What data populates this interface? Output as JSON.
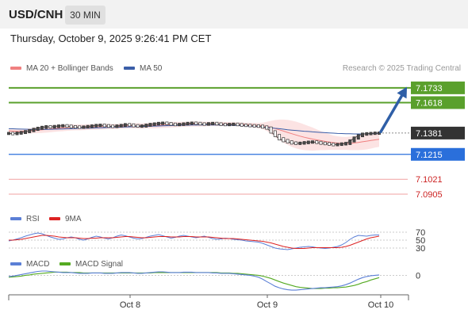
{
  "header": {
    "symbol": "USD/CNH",
    "timeframe": "30 MIN",
    "datetime": "Thursday, October 9, 2025 9:26:41 PM CET"
  },
  "legend": {
    "ma20_label": "MA 20 + Bollinger Bands",
    "ma50_label": "MA 50",
    "credit": "Research © 2025 Trading Central"
  },
  "colors": {
    "price": "#555555",
    "ma20": "#f08080",
    "ma50": "#3b5ea8",
    "green": "#5aa02c",
    "blue": "#2a6fdb",
    "red": "#e07070",
    "rsi": "#5b7fd6",
    "rsi_ma": "#dd2222",
    "macd": "#5b7fd6",
    "macd_signal": "#55aa22",
    "arrow": "#2f5fa7"
  },
  "chart_data": [
    {
      "type": "line",
      "name": "price",
      "x_ticks": [
        "Oct 8",
        "Oct 9",
        "Oct 10"
      ],
      "ylim": [
        7.08,
        7.18
      ],
      "last_price": 7.1381,
      "levels": [
        {
          "value": 7.1733,
          "label": "7.1733",
          "style": "green-tag"
        },
        {
          "value": 7.1618,
          "label": "7.1618",
          "style": "green-tag"
        },
        {
          "value": 7.1381,
          "label": "7.1381",
          "style": "price-tag"
        },
        {
          "value": 7.1215,
          "label": "7.1215",
          "style": "blue-tag"
        },
        {
          "value": 7.1021,
          "label": "7.1021",
          "style": "red-text"
        },
        {
          "value": 7.0905,
          "label": "7.0905",
          "style": "red-text"
        }
      ],
      "target_arrow": {
        "from": 7.139,
        "to": 7.1733
      },
      "close": [
        7.1378,
        7.1376,
        7.138,
        7.1385,
        7.1392,
        7.14,
        7.141,
        7.1418,
        7.1425,
        7.143,
        7.1428,
        7.1432,
        7.1436,
        7.1438,
        7.1434,
        7.143,
        7.1428,
        7.1426,
        7.1428,
        7.1432,
        7.1436,
        7.144,
        7.1442,
        7.1438,
        7.1434,
        7.1432,
        7.1436,
        7.144,
        7.1446,
        7.1444,
        7.1438,
        7.1434,
        7.1436,
        7.1442,
        7.1448,
        7.1452,
        7.1456,
        7.1458,
        7.1455,
        7.145,
        7.1446,
        7.1448,
        7.1452,
        7.1456,
        7.1458,
        7.1456,
        7.1452,
        7.145,
        7.1454,
        7.1456,
        7.1452,
        7.1448,
        7.1446,
        7.1448,
        7.145,
        7.1446,
        7.1442,
        7.144,
        7.1438,
        7.1436,
        7.1434,
        7.1428,
        7.142,
        7.139,
        7.1362,
        7.1336,
        7.1322,
        7.1312,
        7.1304,
        7.13,
        7.1302,
        7.1306,
        7.131,
        7.1312,
        7.1308,
        7.1302,
        7.1298,
        7.1294,
        7.129,
        7.1292,
        7.1296,
        7.13,
        7.132,
        7.1342,
        7.136,
        7.1372,
        7.1376,
        7.1378,
        7.138,
        7.1381
      ],
      "ma20": [
        7.1398,
        7.1396,
        7.1394,
        7.1394,
        7.1396,
        7.1398,
        7.1401,
        7.1404,
        7.1407,
        7.141,
        7.1413,
        7.1416,
        7.1419,
        7.1421,
        7.1423,
        7.1424,
        7.1425,
        7.1425,
        7.1426,
        7.1427,
        7.1428,
        7.1429,
        7.143,
        7.1431,
        7.1432,
        7.1432,
        7.1433,
        7.1434,
        7.1436,
        7.1437,
        7.1437,
        7.1437,
        7.1437,
        7.1438,
        7.1439,
        7.144,
        7.1442,
        7.1444,
        7.1445,
        7.1446,
        7.1447,
        7.1448,
        7.1449,
        7.145,
        7.1451,
        7.1451,
        7.1451,
        7.1451,
        7.1452,
        7.1452,
        7.1452,
        7.1452,
        7.1451,
        7.1451,
        7.145,
        7.1449,
        7.1448,
        7.1446,
        7.1444,
        7.1442,
        7.144,
        7.1437,
        7.1433,
        7.1425,
        7.1416,
        7.1406,
        7.1396,
        7.1386,
        7.1376,
        7.1366,
        7.1357,
        7.1348,
        7.1341,
        7.1334,
        7.1328,
        7.1322,
        7.1316,
        7.1311,
        7.1306,
        7.1303,
        7.1301,
        7.13,
        7.1301,
        7.1304,
        7.1308,
        7.1313,
        7.1318,
        7.1323,
        7.1328,
        7.1332
      ],
      "bb_upper": [
        7.141,
        7.141,
        7.141,
        7.1411,
        7.1414,
        7.1418,
        7.1423,
        7.1428,
        7.1432,
        7.1436,
        7.1439,
        7.1442,
        7.1445,
        7.1447,
        7.1448,
        7.1448,
        7.1448,
        7.1448,
        7.1448,
        7.1449,
        7.145,
        7.1451,
        7.1452,
        7.1452,
        7.1452,
        7.1452,
        7.1453,
        7.1454,
        7.1456,
        7.1457,
        7.1457,
        7.1457,
        7.1458,
        7.1459,
        7.1461,
        7.1463,
        7.1465,
        7.1467,
        7.1468,
        7.1468,
        7.1468,
        7.1468,
        7.1469,
        7.147,
        7.1471,
        7.1471,
        7.147,
        7.1469,
        7.1469,
        7.1469,
        7.1469,
        7.1468,
        7.1467,
        7.1466,
        7.1465,
        7.1464,
        7.1463,
        7.1462,
        7.1461,
        7.146,
        7.146,
        7.1462,
        7.1468,
        7.1476,
        7.1482,
        7.1486,
        7.1486,
        7.1484,
        7.1478,
        7.147,
        7.146,
        7.1448,
        7.1436,
        7.1424,
        7.141,
        7.1396,
        7.1384,
        7.1372,
        7.1362,
        7.1356,
        7.1352,
        7.135,
        7.1354,
        7.136,
        7.1368,
        7.1376,
        7.1382,
        7.1386,
        7.1388,
        7.139
      ],
      "bb_lower": [
        7.1386,
        7.1382,
        7.1378,
        7.1377,
        7.1378,
        7.1378,
        7.1379,
        7.138,
        7.1382,
        7.1384,
        7.1387,
        7.139,
        7.1393,
        7.1395,
        7.1398,
        7.14,
        7.1402,
        7.1402,
        7.1404,
        7.1405,
        7.1406,
        7.1407,
        7.1408,
        7.141,
        7.1412,
        7.1412,
        7.1413,
        7.1414,
        7.1416,
        7.1417,
        7.1417,
        7.1417,
        7.1416,
        7.1417,
        7.1417,
        7.1417,
        7.1419,
        7.1421,
        7.1422,
        7.1424,
        7.1426,
        7.1428,
        7.1429,
        7.143,
        7.1431,
        7.1431,
        7.1432,
        7.1433,
        7.1435,
        7.1435,
        7.1435,
        7.1436,
        7.1435,
        7.1436,
        7.1435,
        7.1434,
        7.1433,
        7.143,
        7.1427,
        7.1424,
        7.142,
        7.1412,
        7.1398,
        7.1374,
        7.135,
        7.1326,
        7.1306,
        7.1288,
        7.1274,
        7.1262,
        7.1254,
        7.1248,
        7.1246,
        7.1244,
        7.1246,
        7.1248,
        7.1248,
        7.125,
        7.125,
        7.125,
        7.125,
        7.125,
        7.1248,
        7.1248,
        7.1248,
        7.125,
        7.1254,
        7.126,
        7.1268,
        7.1274
      ],
      "ma50": [
        7.1415,
        7.1414,
        7.1413,
        7.1412,
        7.1411,
        7.141,
        7.1409,
        7.1409,
        7.1409,
        7.141,
        7.141,
        7.1411,
        7.1412,
        7.1413,
        7.1414,
        7.1415,
        7.1416,
        7.1417,
        7.1418,
        7.1419,
        7.142,
        7.1421,
        7.1422,
        7.1423,
        7.1424,
        7.1425,
        7.1426,
        7.1427,
        7.1428,
        7.1429,
        7.143,
        7.1431,
        7.1432,
        7.1433,
        7.1434,
        7.1435,
        7.1436,
        7.1437,
        7.1438,
        7.1439,
        7.144,
        7.1441,
        7.1442,
        7.1442,
        7.1443,
        7.1443,
        7.1444,
        7.1444,
        7.1444,
        7.1444,
        7.1444,
        7.1443,
        7.1443,
        7.1442,
        7.1441,
        7.144,
        7.1439,
        7.1437,
        7.1435,
        7.1433,
        7.1431,
        7.1428,
        7.1425,
        7.1422,
        7.1418,
        7.1415,
        7.1411,
        7.1407,
        7.1404,
        7.1401,
        7.1398,
        7.1395,
        7.1393,
        7.139,
        7.1388,
        7.1386,
        7.1384,
        7.1382,
        7.138,
        7.1378,
        7.1377,
        7.1376,
        7.1375,
        7.1374,
        7.1374,
        7.1374,
        7.1375,
        7.1376,
        7.1377,
        7.1378
      ]
    },
    {
      "type": "line",
      "name": "rsi",
      "legend": [
        "RSI",
        "9MA"
      ],
      "ylim": [
        20,
        80
      ],
      "levels": [
        {
          "value": 70,
          "label": "70"
        },
        {
          "value": 50,
          "label": "50"
        },
        {
          "value": 30,
          "label": "30"
        }
      ],
      "rsi": [
        48,
        50,
        53,
        56,
        60,
        63,
        66,
        68,
        66,
        62,
        58,
        55,
        52,
        53,
        56,
        58,
        56,
        52,
        50,
        53,
        57,
        60,
        58,
        55,
        53,
        56,
        60,
        63,
        61,
        58,
        55,
        53,
        54,
        57,
        60,
        62,
        64,
        61,
        58,
        55,
        57,
        60,
        62,
        60,
        58,
        56,
        58,
        60,
        57,
        54,
        52,
        53,
        55,
        54,
        52,
        51,
        50,
        48,
        47,
        46,
        45,
        42,
        38,
        34,
        30,
        28,
        27,
        26,
        28,
        30,
        32,
        33,
        34,
        33,
        31,
        30,
        29,
        30,
        32,
        34,
        38,
        44,
        52,
        58,
        62,
        61,
        60,
        62,
        63,
        63
      ],
      "rsi_ma": [
        50,
        50,
        51,
        52,
        54,
        56,
        58,
        60,
        62,
        62,
        61,
        60,
        58,
        57,
        56,
        56,
        56,
        55,
        54,
        54,
        55,
        55,
        56,
        56,
        56,
        56,
        57,
        58,
        59,
        59,
        58,
        57,
        56,
        56,
        57,
        58,
        59,
        59,
        59,
        58,
        58,
        58,
        59,
        59,
        59,
        58,
        58,
        58,
        58,
        57,
        56,
        55,
        54,
        54,
        54,
        53,
        52,
        51,
        50,
        49,
        48,
        47,
        45,
        43,
        40,
        37,
        34,
        32,
        30,
        29,
        29,
        29,
        30,
        31,
        31,
        31,
        31,
        31,
        31,
        31,
        32,
        34,
        37,
        41,
        45,
        49,
        53,
        56,
        58,
        60
      ]
    },
    {
      "type": "line",
      "name": "macd",
      "legend": [
        "MACD",
        "MACD Signal"
      ],
      "ylim": [
        -0.005,
        0.0015
      ],
      "levels": [
        {
          "value": 0,
          "label": "0"
        }
      ],
      "macd": [
        -0.0003,
        -0.0002,
        0.0,
        0.0002,
        0.0004,
        0.0006,
        0.0008,
        0.001,
        0.0011,
        0.0011,
        0.001,
        0.0009,
        0.0008,
        0.0007,
        0.0007,
        0.0007,
        0.0006,
        0.0005,
        0.0005,
        0.0005,
        0.0006,
        0.0006,
        0.0006,
        0.0005,
        0.0005,
        0.0005,
        0.0006,
        0.0007,
        0.0007,
        0.0007,
        0.0006,
        0.0005,
        0.0005,
        0.0006,
        0.0007,
        0.0008,
        0.0009,
        0.0009,
        0.0008,
        0.0007,
        0.0007,
        0.0007,
        0.0008,
        0.0008,
        0.0008,
        0.0007,
        0.0007,
        0.0007,
        0.0007,
        0.0006,
        0.0006,
        0.0005,
        0.0005,
        0.0005,
        0.0004,
        0.0003,
        0.0002,
        0.0001,
        0.0,
        -0.0002,
        -0.0005,
        -0.001,
        -0.0016,
        -0.0022,
        -0.0028,
        -0.0032,
        -0.0035,
        -0.0037,
        -0.0038,
        -0.0038,
        -0.0037,
        -0.0036,
        -0.0035,
        -0.0034,
        -0.0033,
        -0.0032,
        -0.0032,
        -0.0031,
        -0.003,
        -0.0029,
        -0.0027,
        -0.0024,
        -0.002,
        -0.0015,
        -0.001,
        -0.0006,
        -0.0003,
        -0.0001,
        0.0,
        0.0001
      ],
      "signal": [
        -0.0005,
        -0.0004,
        -0.0003,
        -0.0002,
        0.0,
        0.0001,
        0.0003,
        0.0004,
        0.0005,
        0.0006,
        0.0007,
        0.0008,
        0.0008,
        0.0008,
        0.0008,
        0.0007,
        0.0007,
        0.0007,
        0.0006,
        0.0006,
        0.0006,
        0.0006,
        0.0006,
        0.0006,
        0.0006,
        0.0006,
        0.0006,
        0.0006,
        0.0006,
        0.0006,
        0.0006,
        0.0006,
        0.0006,
        0.0006,
        0.0006,
        0.0007,
        0.0007,
        0.0007,
        0.0007,
        0.0007,
        0.0007,
        0.0007,
        0.0007,
        0.0007,
        0.0007,
        0.0007,
        0.0007,
        0.0007,
        0.0007,
        0.0007,
        0.0007,
        0.0006,
        0.0006,
        0.0006,
        0.0005,
        0.0005,
        0.0004,
        0.0003,
        0.0002,
        0.0001,
        0.0,
        -0.0002,
        -0.0005,
        -0.0008,
        -0.0012,
        -0.0016,
        -0.002,
        -0.0023,
        -0.0026,
        -0.0029,
        -0.0031,
        -0.0032,
        -0.0033,
        -0.0034,
        -0.0034,
        -0.0034,
        -0.0033,
        -0.0033,
        -0.0032,
        -0.0032,
        -0.0031,
        -0.003,
        -0.0028,
        -0.0026,
        -0.0023,
        -0.0019,
        -0.0016,
        -0.0012,
        -0.0009,
        -0.0006
      ]
    }
  ],
  "sub_legends": {
    "rsi": [
      "RSI",
      "9MA"
    ],
    "macd": [
      "MACD",
      "MACD Signal"
    ]
  }
}
